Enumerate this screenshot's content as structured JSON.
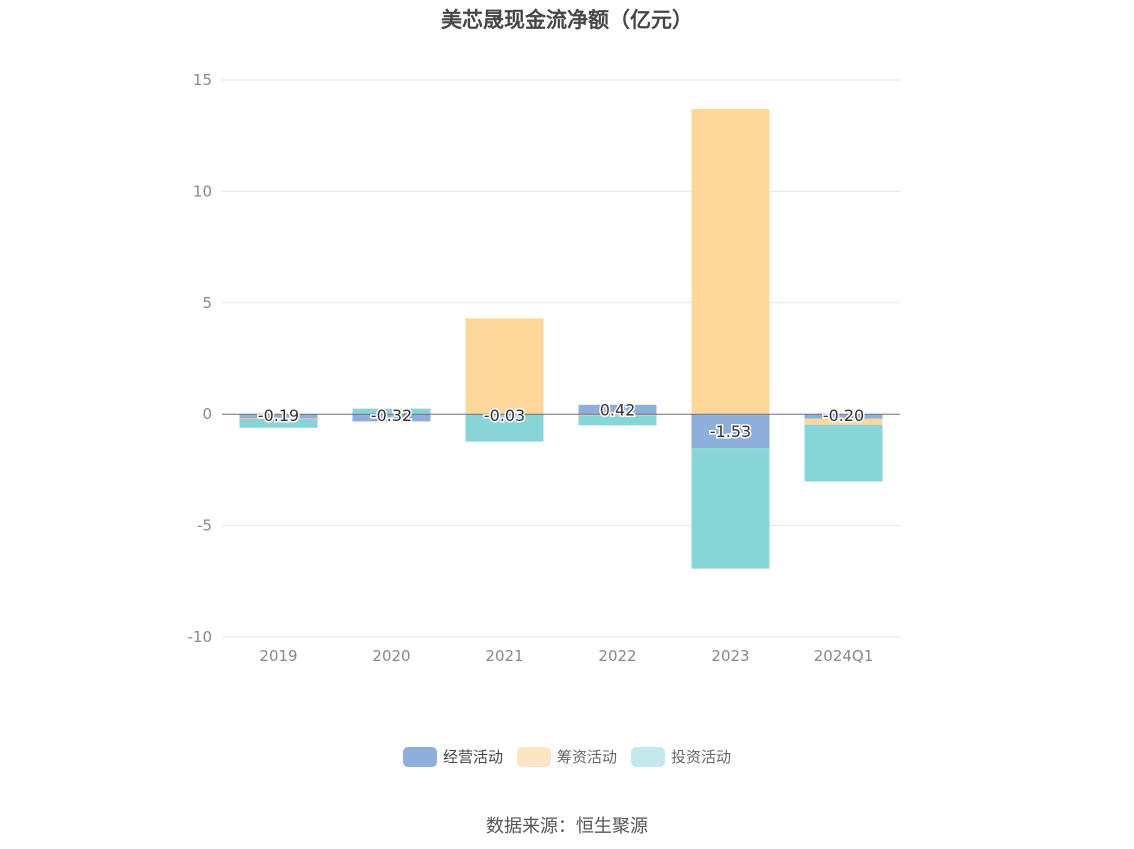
{
  "chart_data": {
    "type": "bar",
    "stacked": true,
    "title": "美芯晟现金流净额（亿元）",
    "categories": [
      "2019",
      "2020",
      "2021",
      "2022",
      "2023",
      "2024Q1"
    ],
    "ylim": [
      -10,
      15
    ],
    "yticks": [
      "15",
      "10",
      "5",
      "0",
      "-5",
      "-10"
    ],
    "grid": true,
    "legend_position": "bottom",
    "series": [
      {
        "name": "经营活动",
        "color": "#8eaedb",
        "values": [
          -0.19,
          -0.32,
          -0.03,
          0.42,
          -1.53,
          -0.2
        ],
        "labels": [
          "-0.19",
          "-0.32",
          "-0.03",
          "0.42",
          "-1.53",
          "-0.20"
        ]
      },
      {
        "name": "筹资活动",
        "color": "#fdd89a",
        "values": [
          -0.02,
          -0.02,
          4.3,
          -0.05,
          13.7,
          -0.27
        ]
      },
      {
        "name": "投资活动",
        "color": "#88d5d8",
        "values": [
          -0.4,
          0.25,
          -1.2,
          -0.45,
          -5.4,
          -2.55
        ]
      }
    ],
    "legend_colors": [
      "#8eaedb",
      "#fde5c3",
      "#c3e9ec"
    ]
  },
  "source": "数据来源：恒生聚源"
}
